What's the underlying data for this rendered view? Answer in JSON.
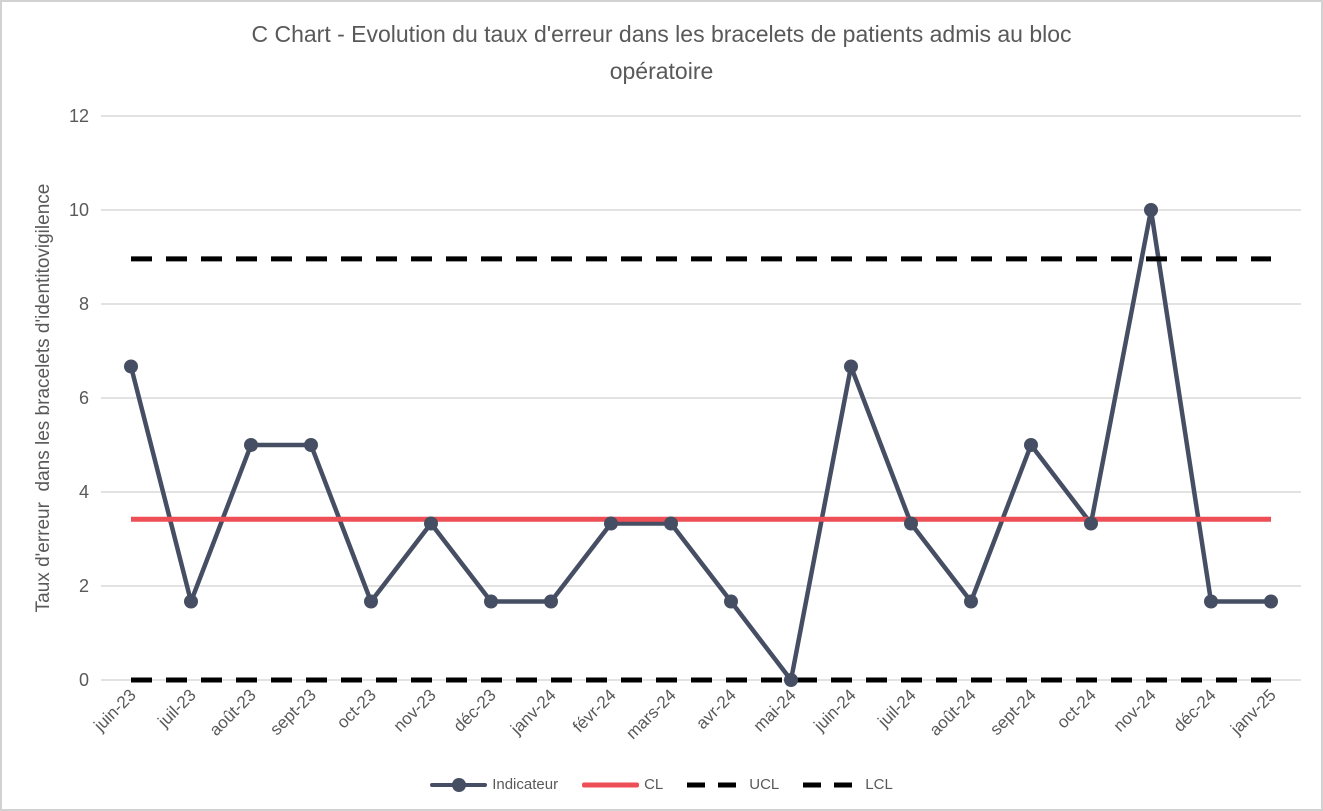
{
  "window": {
    "background": "#ffffff",
    "border_color": "#d2d2d2"
  },
  "chart_data": {
    "type": "line",
    "title": "C Chart - Evolution du taux d'erreur dans les bracelets de patients admis au bloc opératoire",
    "title_lines": [
      "C Chart - Evolution du taux d'erreur dans les bracelets de patients admis au bloc",
      "opératoire"
    ],
    "xlabel": "",
    "ylabel": "Taux d'erreur  dans les bracelets d'identitovigilence",
    "categories": [
      "juin-23",
      "juil-23",
      "août-23",
      "sept-23",
      "oct-23",
      "nov-23",
      "déc-23",
      "janv-24",
      "févr-24",
      "mars-24",
      "avr-24",
      "mai-24",
      "juin-24",
      "juil-24",
      "août-24",
      "sept-24",
      "oct-24",
      "nov-24",
      "déc-24",
      "janv-25"
    ],
    "series": [
      {
        "name": "Indicateur",
        "style": "line-marker",
        "color": "#454E63",
        "values": [
          6.67,
          1.67,
          5,
          5,
          1.67,
          3.33,
          1.67,
          1.67,
          3.33,
          3.33,
          1.67,
          0,
          6.67,
          3.33,
          1.67,
          5,
          3.33,
          10,
          1.67,
          1.67
        ]
      },
      {
        "name": "CL",
        "style": "solid",
        "color": "#EE4E55",
        "value": 3.42
      },
      {
        "name": "UCL",
        "style": "dashed",
        "color": "#000000",
        "value": 8.96
      },
      {
        "name": "LCL",
        "style": "dashed",
        "color": "#000000",
        "value": 0
      }
    ],
    "ylim": [
      0,
      12
    ],
    "yticks": [
      0,
      2,
      4,
      6,
      8,
      10,
      12
    ],
    "grid": "horizontal",
    "gridline_color": "#D9D9D9",
    "axis_text_color": "#595959",
    "legend_position": "bottom"
  }
}
